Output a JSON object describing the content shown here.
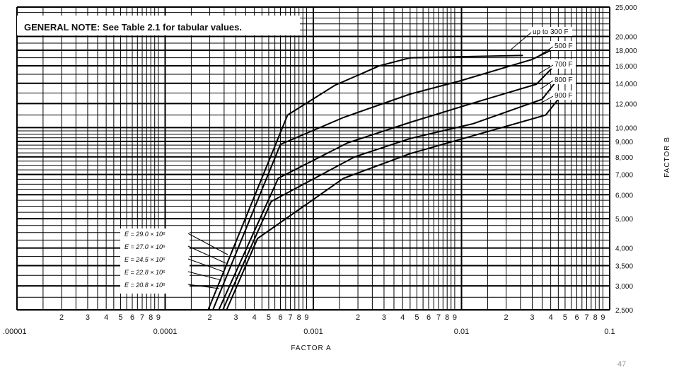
{
  "chart_data": {
    "type": "line",
    "note": "GENERAL NOTE: See Table 2.1 for tabular values.",
    "xlabel": "FACTOR A",
    "ylabel": "FACTOR B",
    "x_scale": "log",
    "y_scale": "log",
    "xlim": [
      1e-05,
      0.1
    ],
    "ylim": [
      2500,
      25000
    ],
    "x_major_labels": [
      ".00001",
      "0.0001",
      "0.001",
      "0.01",
      "0.1"
    ],
    "x_minor_labels": [
      "2",
      "3",
      "4",
      "5",
      "6",
      "7",
      "8",
      "9"
    ],
    "y_tick_labels": [
      "2,500",
      "3,000",
      "3,500",
      "4,000",
      "5,000",
      "6,000",
      "7,000",
      "8,000",
      "9,000",
      "10,000",
      "12,000",
      "14,000",
      "16,000",
      "18,000",
      "20,000",
      "25,000"
    ],
    "y_tick_values": [
      2500,
      3000,
      3500,
      4000,
      5000,
      6000,
      7000,
      8000,
      9000,
      10000,
      12000,
      14000,
      16000,
      18000,
      20000,
      25000
    ],
    "series": [
      {
        "name": "up to 300 F",
        "points": [
          [
            0.000195,
            2500
          ],
          [
            0.00067,
            11000
          ],
          [
            0.0014,
            13800
          ],
          [
            0.0028,
            16000
          ],
          [
            0.0045,
            17000
          ],
          [
            0.026,
            17300
          ]
        ]
      },
      {
        "name": "500 F",
        "points": [
          [
            0.00021,
            2500
          ],
          [
            0.0006,
            8800
          ],
          [
            0.0016,
            10800
          ],
          [
            0.0045,
            12900
          ],
          [
            0.0095,
            14200
          ],
          [
            0.03,
            16800
          ],
          [
            0.045,
            18500
          ]
        ]
      },
      {
        "name": "700 F",
        "points": [
          [
            0.00023,
            2500
          ],
          [
            0.00058,
            6800
          ],
          [
            0.0017,
            8900
          ],
          [
            0.0045,
            10400
          ],
          [
            0.013,
            12200
          ],
          [
            0.032,
            13900
          ],
          [
            0.045,
            16500
          ]
        ]
      },
      {
        "name": "800 F",
        "points": [
          [
            0.000245,
            2500
          ],
          [
            0.00052,
            5700
          ],
          [
            0.0019,
            8000
          ],
          [
            0.0045,
            9200
          ],
          [
            0.012,
            10300
          ],
          [
            0.035,
            12400
          ],
          [
            0.045,
            14500
          ]
        ]
      },
      {
        "name": "900 F",
        "points": [
          [
            0.00026,
            2500
          ],
          [
            0.00042,
            4300
          ],
          [
            0.0016,
            6800
          ],
          [
            0.0045,
            8200
          ],
          [
            0.012,
            9400
          ],
          [
            0.037,
            11000
          ],
          [
            0.045,
            12400
          ]
        ]
      }
    ],
    "e_labels": [
      "E = 29.0 × 10⁶",
      "E = 27.0 × 10⁶",
      "E = 24.5 × 10⁶",
      "E = 22.8 × 10⁶",
      "E = 20.8 × 10⁶"
    ],
    "grid": true
  },
  "page_number": "47"
}
